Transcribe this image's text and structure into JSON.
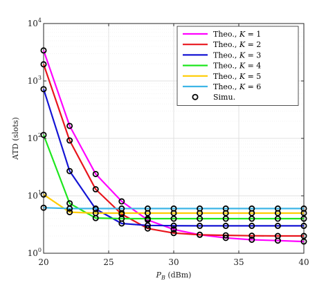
{
  "chart_data": {
    "type": "line",
    "xlabel_main": "P",
    "xlabel_sub": "B",
    "xlabel_unit": " (dBm)",
    "ylabel": "ATD (slots)",
    "xlim": [
      20,
      40
    ],
    "ylim": [
      1,
      10000
    ],
    "yscale": "log",
    "grid": true,
    "legend_position": "top-right",
    "x": [
      20,
      22,
      24,
      26,
      28,
      30,
      32,
      34,
      36,
      38,
      40
    ],
    "x_ticks": [
      "20",
      "25",
      "30",
      "35",
      "40"
    ],
    "x_tick_values": [
      20,
      25,
      30,
      35,
      40
    ],
    "y_ticks": [
      {
        "base": "10",
        "exp": "0",
        "value": 1
      },
      {
        "base": "10",
        "exp": "1",
        "value": 10
      },
      {
        "base": "10",
        "exp": "2",
        "value": 100
      },
      {
        "base": "10",
        "exp": "3",
        "value": 1000
      },
      {
        "base": "10",
        "exp": "4",
        "value": 10000
      }
    ],
    "series": [
      {
        "name_prefix": "Theo., ",
        "name_var": "K",
        "name_rest": " = 1",
        "color": "#ff00ff",
        "values": [
          3400,
          165,
          24,
          8,
          3.8,
          2.6,
          2.1,
          1.85,
          1.72,
          1.66,
          1.6
        ]
      },
      {
        "name_prefix": "Theo., ",
        "name_var": "K",
        "name_rest": " = 2",
        "color": "#e8141c",
        "values": [
          1950,
          92,
          13,
          4.8,
          2.7,
          2.25,
          2.1,
          2.05,
          2.02,
          2.0,
          2.0
        ]
      },
      {
        "name_prefix": "Theo., ",
        "name_var": "K",
        "name_rest": " = 3",
        "color": "#1414d4",
        "values": [
          720,
          27,
          5.9,
          3.3,
          3.05,
          3.02,
          3.0,
          3.0,
          3.0,
          3.0,
          3.0
        ]
      },
      {
        "name_prefix": "Theo., ",
        "name_var": "K",
        "name_rest": " = 4",
        "color": "#1ee61e",
        "values": [
          115,
          7.4,
          4.1,
          4.0,
          4.0,
          4.0,
          4.0,
          4.0,
          4.0,
          4.0,
          4.0
        ]
      },
      {
        "name_prefix": "Theo., ",
        "name_var": "K",
        "name_rest": " = 5",
        "color": "#ffcc00",
        "values": [
          10.5,
          5.2,
          5.0,
          5.0,
          5.0,
          5.0,
          5.0,
          5.0,
          5.0,
          5.0,
          5.0
        ]
      },
      {
        "name_prefix": "Theo., ",
        "name_var": "K",
        "name_rest": " = 6",
        "color": "#3db5e6",
        "values": [
          6.2,
          6.0,
          6.0,
          6.0,
          6.0,
          6.0,
          6.0,
          6.0,
          6.0,
          6.0,
          6.0
        ]
      }
    ],
    "markers_label": "Simu.",
    "marker_style": "circle"
  }
}
